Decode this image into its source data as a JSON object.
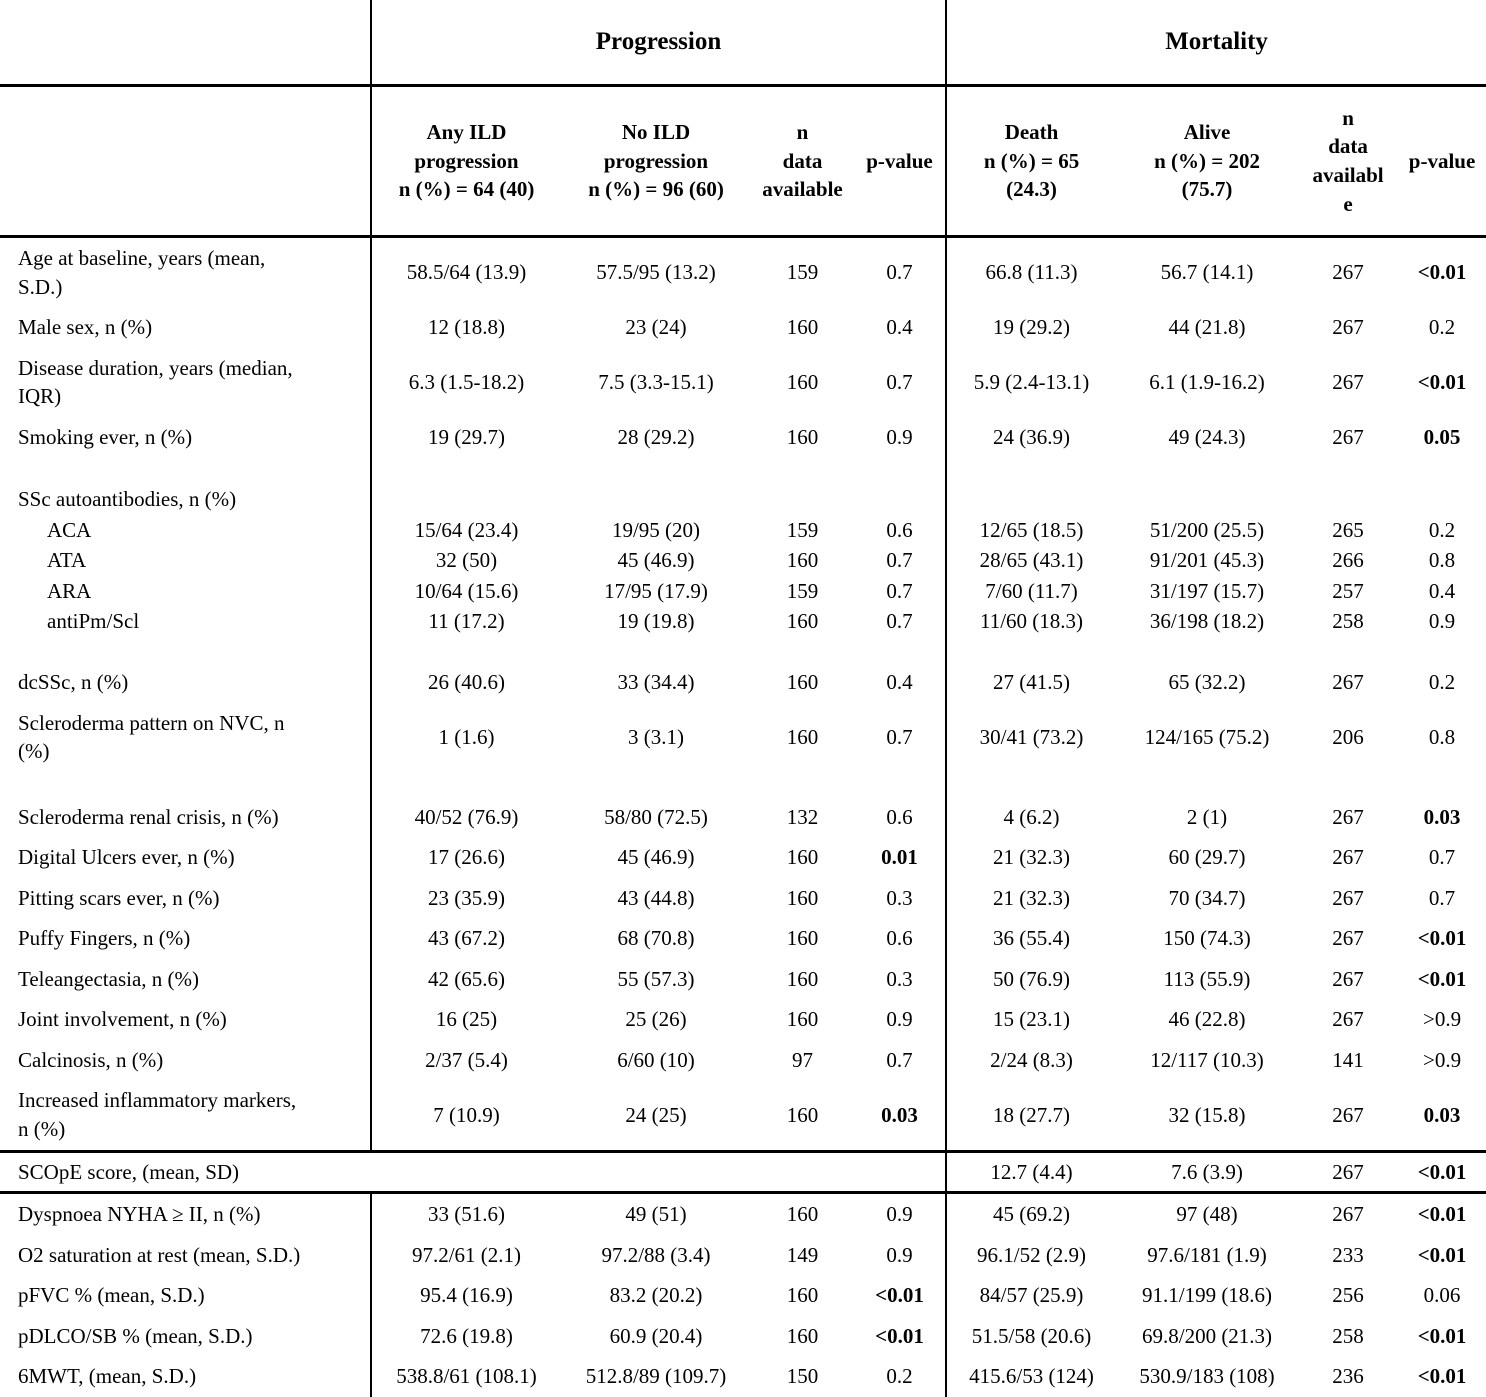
{
  "table": {
    "group_headers": {
      "progression": "Progression",
      "mortality": "Mortality"
    },
    "column_headers": [
      "Any ILD\nprogression\nn (%) = 64 (40)",
      "No ILD\nprogression\nn (%) = 96 (60)",
      "n\ndata\navailable",
      "p-value",
      "Death\nn (%) = 65\n(24.3)",
      "Alive\nn (%) = 202\n(75.7)",
      "n\ndata\navailabl\ne",
      "p-value"
    ],
    "rows": [
      {
        "type": "normal",
        "label": "Age at baseline, years (mean,\nS.D.)",
        "cells": [
          "58.5/64 (13.9)",
          "57.5/95 (13.2)",
          "159",
          "0.7",
          "66.8 (11.3)",
          "56.7 (14.1)",
          "267",
          "<0.01"
        ],
        "bold": [
          7
        ]
      },
      {
        "type": "normal",
        "label": "Male sex, n (%)",
        "cells": [
          "12 (18.8)",
          "23 (24)",
          "160",
          "0.4",
          "19 (29.2)",
          "44 (21.8)",
          "267",
          "0.2"
        ],
        "bold": []
      },
      {
        "type": "normal",
        "label": "Disease duration, years (median,\nIQR)",
        "cells": [
          "6.3 (1.5-18.2)",
          "7.5 (3.3-15.1)",
          "160",
          "0.7",
          "5.9 (2.4-13.1)",
          "6.1 (1.9-16.2)",
          "267",
          "<0.01"
        ],
        "bold": [
          7
        ]
      },
      {
        "type": "normal",
        "label": "Smoking ever, n (%)",
        "cells": [
          "19 (29.7)",
          "28 (29.2)",
          "160",
          "0.9",
          "24 (36.9)",
          "49 (24.3)",
          "267",
          "0.05"
        ],
        "bold": [
          7
        ]
      },
      {
        "type": "spacer",
        "label": "",
        "cells": [
          "",
          "",
          "",
          "",
          "",
          "",
          "",
          ""
        ],
        "bold": []
      },
      {
        "type": "group",
        "label": "SSc autoantibodies, n (%)",
        "cells": [
          "",
          "",
          "",
          "",
          "",
          "",
          "",
          ""
        ],
        "bold": []
      },
      {
        "type": "tight",
        "indent": true,
        "label": "ACA",
        "cells": [
          "15/64 (23.4)",
          "19/95 (20)",
          "159",
          "0.6",
          "12/65 (18.5)",
          "51/200 (25.5)",
          "265",
          "0.2"
        ],
        "bold": []
      },
      {
        "type": "tight",
        "indent": true,
        "label": "ATA",
        "cells": [
          "32 (50)",
          "45 (46.9)",
          "160",
          "0.7",
          "28/65 (43.1)",
          "91/201 (45.3)",
          "266",
          "0.8"
        ],
        "bold": []
      },
      {
        "type": "tight",
        "indent": true,
        "label": "ARA",
        "cells": [
          "10/64 (15.6)",
          "17/95 (17.9)",
          "159",
          "0.7",
          "7/60 (11.7)",
          "31/197 (15.7)",
          "257",
          "0.4"
        ],
        "bold": []
      },
      {
        "type": "tight",
        "indent": true,
        "label": "antiPm/Scl",
        "cells": [
          "11 (17.2)",
          "19 (19.8)",
          "160",
          "0.7",
          "11/60 (18.3)",
          "36/198 (18.2)",
          "258",
          "0.9"
        ],
        "bold": []
      },
      {
        "type": "spacer",
        "label": "",
        "cells": [
          "",
          "",
          "",
          "",
          "",
          "",
          "",
          ""
        ],
        "bold": []
      },
      {
        "type": "normal",
        "label": "dcSSc, n (%)",
        "cells": [
          "26 (40.6)",
          "33 (34.4)",
          "160",
          "0.4",
          "27 (41.5)",
          "65 (32.2)",
          "267",
          "0.2"
        ],
        "bold": []
      },
      {
        "type": "normal",
        "label": "Scleroderma pattern on NVC, n\n(%)",
        "cells": [
          "1 (1.6)",
          "3 (3.1)",
          "160",
          "0.7",
          "30/41 (73.2)",
          "124/165 (75.2)",
          "206",
          "0.8"
        ],
        "bold": []
      },
      {
        "type": "spacer",
        "label": "",
        "cells": [
          "",
          "",
          "",
          "",
          "",
          "",
          "",
          ""
        ],
        "bold": []
      },
      {
        "type": "normal",
        "label": "Scleroderma renal crisis, n (%)",
        "cells": [
          "40/52 (76.9)",
          "58/80 (72.5)",
          "132",
          "0.6",
          "4 (6.2)",
          "2 (1)",
          "267",
          "0.03"
        ],
        "bold": [
          7
        ]
      },
      {
        "type": "normal",
        "label": "Digital Ulcers ever, n (%)",
        "cells": [
          "17 (26.6)",
          "45 (46.9)",
          "160",
          "0.01",
          "21 (32.3)",
          "60 (29.7)",
          "267",
          "0.7"
        ],
        "bold": [
          3
        ]
      },
      {
        "type": "normal",
        "label": "Pitting scars ever, n (%)",
        "cells": [
          "23 (35.9)",
          "43 (44.8)",
          "160",
          "0.3",
          "21 (32.3)",
          "70 (34.7)",
          "267",
          "0.7"
        ],
        "bold": []
      },
      {
        "type": "normal",
        "label": "Puffy Fingers, n (%)",
        "cells": [
          "43 (67.2)",
          "68 (70.8)",
          "160",
          "0.6",
          "36 (55.4)",
          "150 (74.3)",
          "267",
          "<0.01"
        ],
        "bold": [
          7
        ]
      },
      {
        "type": "normal",
        "label": "Teleangectasia, n (%)",
        "cells": [
          "42 (65.6)",
          "55 (57.3)",
          "160",
          "0.3",
          "50 (76.9)",
          "113 (55.9)",
          "267",
          "<0.01"
        ],
        "bold": [
          7
        ]
      },
      {
        "type": "normal",
        "label": "Joint involvement, n (%)",
        "cells": [
          "16 (25)",
          "25 (26)",
          "160",
          "0.9",
          "15 (23.1)",
          "46 (22.8)",
          "267",
          ">0.9"
        ],
        "bold": []
      },
      {
        "type": "normal",
        "label": "Calcinosis, n (%)",
        "cells": [
          "2/37 (5.4)",
          "6/60 (10)",
          "97",
          "0.7",
          "2/24 (8.3)",
          "12/117 (10.3)",
          "141",
          ">0.9"
        ],
        "bold": []
      },
      {
        "type": "normal",
        "label": "Increased inflammatory markers,\nn (%)",
        "cells": [
          "7 (10.9)",
          "24 (25)",
          "160",
          "0.03",
          "18 (27.7)",
          "32 (15.8)",
          "267",
          "0.03"
        ],
        "bold": [
          3,
          7
        ]
      },
      {
        "type": "scope",
        "label": "SCOpE score, (mean, SD)",
        "cells": [
          "",
          "",
          "",
          "",
          "12.7 (4.4)",
          "7.6 (3.9)",
          "267",
          "<0.01"
        ],
        "bold": [
          7
        ]
      },
      {
        "type": "normal",
        "label": "Dyspnoea NYHA ≥ II, n (%)",
        "cells": [
          "33 (51.6)",
          "49 (51)",
          "160",
          "0.9",
          "45 (69.2)",
          "97 (48)",
          "267",
          "<0.01"
        ],
        "bold": [
          7
        ]
      },
      {
        "type": "normal",
        "label": "O2 saturation at rest (mean, S.D.)",
        "cells": [
          "97.2/61 (2.1)",
          "97.2/88 (3.4)",
          "149",
          "0.9",
          "96.1/52 (2.9)",
          "97.6/181 (1.9)",
          "233",
          "<0.01"
        ],
        "bold": [
          7
        ]
      },
      {
        "type": "normal",
        "label": "pFVC % (mean, S.D.)",
        "cells": [
          "95.4 (16.9)",
          "83.2 (20.2)",
          "160",
          "<0.01",
          "84/57 (25.9)",
          "91.1/199 (18.6)",
          "256",
          "0.06"
        ],
        "bold": [
          3
        ]
      },
      {
        "type": "normal",
        "label": "pDLCO/SB % (mean, S.D.)",
        "cells": [
          "72.6 (19.8)",
          "60.9 (20.4)",
          "160",
          "<0.01",
          "51.5/58 (20.6)",
          "69.8/200 (21.3)",
          "258",
          "<0.01"
        ],
        "bold": [
          3,
          7
        ]
      },
      {
        "type": "normal",
        "label": "6MWT, (mean, S.D.)",
        "cells": [
          "538.8/61 (108.1)",
          "512.8/89 (109.7)",
          "150",
          "0.2",
          "415.6/53 (124)",
          "530.9/183 (108)",
          "236",
          "<0.01"
        ],
        "bold": [
          7
        ]
      }
    ]
  }
}
